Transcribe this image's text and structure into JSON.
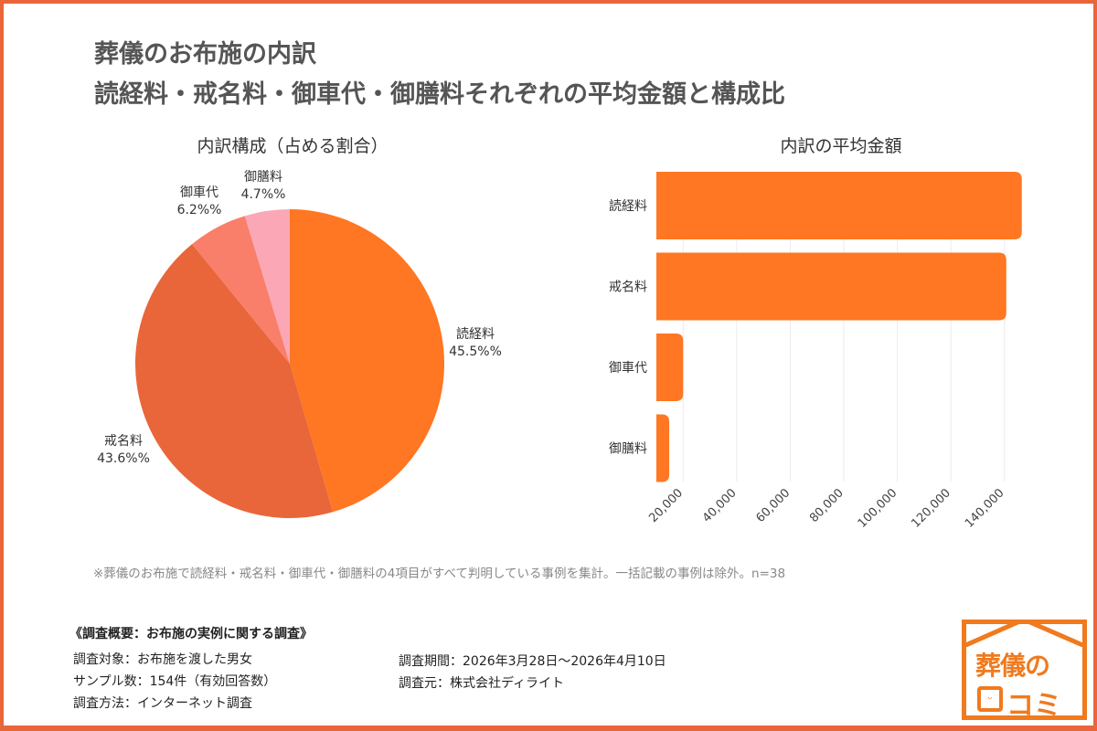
{
  "title": {
    "line1": "葬儀のお布施の内訳",
    "line2": "読経料・戒名料・御車代・御膳料それぞれの平均金額と構成比"
  },
  "chart_data": [
    {
      "type": "pie",
      "title": "内訳構成（占める割合）",
      "categories": [
        "読経料",
        "戒名料",
        "御車代",
        "御膳料"
      ],
      "values": [
        45.5,
        43.6,
        6.2,
        4.7
      ],
      "labels": [
        "45.5%%",
        "43.6%%",
        "6.2%%",
        "4.7%%"
      ],
      "colors": [
        "#FF7722",
        "#E8663A",
        "#F97F6A",
        "#FBA7B6"
      ]
    },
    {
      "type": "bar",
      "orientation": "horizontal",
      "title": "内訳の平均金額",
      "categories": [
        "読経料",
        "戒名料",
        "御車代",
        "御膳料"
      ],
      "values": [
        146500,
        140700,
        20000,
        14800
      ],
      "xlim": [
        10000,
        150000
      ],
      "xticks": [
        20000,
        40000,
        60000,
        80000,
        100000,
        120000,
        140000
      ],
      "xtick_labels": [
        "20,000",
        "40,000",
        "60,000",
        "80,000",
        "100,000",
        "120,000",
        "140,000"
      ],
      "color": "#FF7722",
      "grid": true
    }
  ],
  "note": "※葬儀のお布施で読経料・戒名料・御車代・御膳料の4項目がすべて判明している事例を集計。一括記載の事例は除外。n=38",
  "summary": {
    "heading": "《調査概要：お布施の実例に関する調査》",
    "target": "調査対象：お布施を渡した男女",
    "sample": "サンプル数：154件（有効回答数）",
    "method": "調査方法：インターネット調査",
    "period": "調査期間：2026年3月28日～2026年4月10日",
    "source": "調査元：株式会社ディライト"
  },
  "logo": {
    "line1": "葬儀の",
    "line2": "コミ",
    "face": "・・\n‿"
  }
}
